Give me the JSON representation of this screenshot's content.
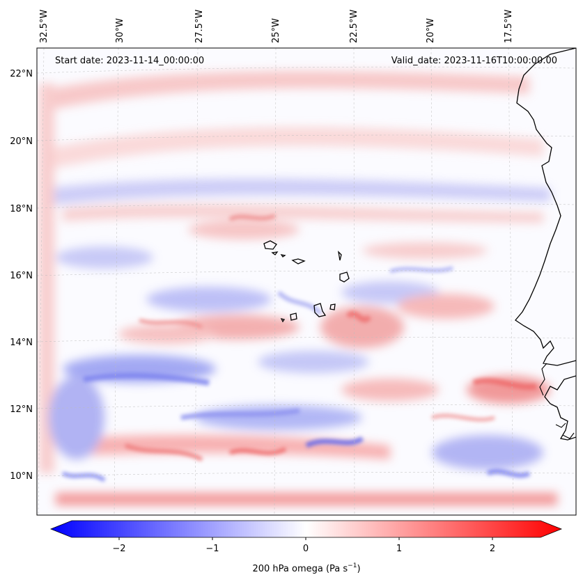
{
  "map": {
    "start_date": "Start date: 2023-11-14_00:00:00",
    "valid_date": "Valid_date: 2023-11-16T10:00:00.00",
    "lon_labels": [
      "32.5°W",
      "30°W",
      "27.5°W",
      "25°W",
      "22.5°W",
      "20°W",
      "17.5°W"
    ],
    "lat_labels": [
      "22°N",
      "20°N",
      "18°N",
      "16°N",
      "14°N",
      "12°N",
      "10°N"
    ]
  },
  "colorbar": {
    "label": "200 hPa omega (Pa s",
    "label_exp": "−1",
    "label_end": ")",
    "ticks": [
      "−2",
      "−1",
      "0",
      "1",
      "2"
    ],
    "range": [
      -2.7,
      2.7
    ],
    "cmap": "bwr",
    "color_min": "#0000ff",
    "color_mid": "#ffffff",
    "color_max": "#ff0000"
  }
}
